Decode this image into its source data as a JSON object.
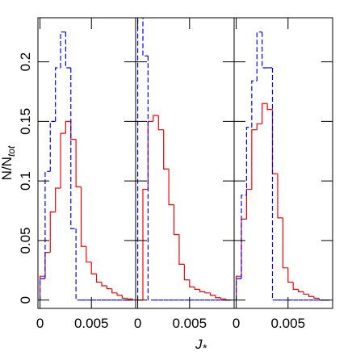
{
  "chart_data": [
    {
      "type": "histogram",
      "ylabel": "N/N",
      "ylabel_sub": "tot",
      "bins": [
        0,
        0.0005,
        0.001,
        0.0015,
        0.002,
        0.0025,
        0.003,
        0.0035,
        0.004,
        0.0045,
        0.005,
        0.0055,
        0.006,
        0.0065,
        0.007,
        0.0075,
        0.008,
        0.0085,
        0.009
      ],
      "series": [
        {
          "color": "#ff0000",
          "dashed": false,
          "values": [
            0.02,
            0.04,
            0.074,
            0.094,
            0.14,
            0.15,
            0.135,
            0.095,
            0.045,
            0.032,
            0.022,
            0.015,
            0.012,
            0.0095,
            0.006,
            0.004,
            0.0015,
            0.001
          ]
        },
        {
          "color": "#0000ff",
          "dashed": true,
          "values": [
            0.018,
            0.108,
            0.15,
            0.195,
            0.225,
            0.195,
            0.06,
            0,
            0,
            0,
            0,
            0,
            0,
            0,
            0,
            0,
            0,
            0
          ]
        }
      ],
      "xlim": [
        -0.0002,
        0.0093
      ],
      "xticks": [
        0,
        0.005
      ],
      "ylim": [
        -0.007,
        0.237
      ],
      "yticks": [
        0,
        0.05,
        0.1,
        0.15,
        0.2
      ]
    },
    {
      "type": "histogram",
      "xlabel": "J",
      "xlabel_sub": "*",
      "bins": [
        0,
        0.0005,
        0.001,
        0.0015,
        0.002,
        0.0025,
        0.003,
        0.0035,
        0.004,
        0.0045,
        0.005,
        0.0055,
        0.006,
        0.0065,
        0.007,
        0.0075,
        0.008,
        0.0085,
        0.009
      ],
      "series": [
        {
          "color": "#ff0000",
          "dashed": false,
          "values": [
            0,
            0.093,
            0.15,
            0.155,
            0.143,
            0.11,
            0.08,
            0.055,
            0.03,
            0.017,
            0.011,
            0.009,
            0.007,
            0.006,
            0.004,
            0.002,
            0.001,
            0
          ]
        },
        {
          "color": "#0000ff",
          "dashed": true,
          "values": [
            0.24,
            0.205,
            0,
            0,
            0,
            0,
            0,
            0,
            0,
            0,
            0,
            0,
            0,
            0,
            0,
            0,
            0,
            0
          ]
        }
      ],
      "xlim": [
        -0.0002,
        0.0093
      ],
      "xticks": [
        0,
        0.005
      ],
      "ylim": [
        -0.007,
        0.237
      ],
      "yticks": [
        0,
        0.05,
        0.1,
        0.15,
        0.2
      ]
    },
    {
      "type": "histogram",
      "bins": [
        0,
        0.0005,
        0.001,
        0.0015,
        0.002,
        0.0025,
        0.003,
        0.0035,
        0.004,
        0.0045,
        0.005,
        0.0055,
        0.006,
        0.0065,
        0.007,
        0.0075,
        0.008,
        0.0085,
        0.009
      ],
      "series": [
        {
          "color": "#ff0000",
          "dashed": false,
          "values": [
            0.02,
            0.068,
            0.093,
            0.143,
            0.148,
            0.165,
            0.16,
            0.106,
            0.069,
            0.027,
            0.015,
            0.009,
            0.007,
            0.005,
            0.003,
            0.0015,
            0,
            0
          ]
        },
        {
          "color": "#0000ff",
          "dashed": true,
          "values": [
            0.018,
            0.088,
            0.145,
            0.184,
            0.225,
            0.195,
            0.195,
            0,
            0,
            0,
            0,
            0,
            0,
            0,
            0,
            0,
            0,
            0
          ]
        }
      ],
      "xlim": [
        -0.0002,
        0.0093
      ],
      "xticks": [
        0,
        0.005
      ],
      "ylim": [
        -0.007,
        0.237
      ],
      "yticks": [
        0,
        0.05,
        0.1,
        0.15,
        0.2
      ]
    }
  ]
}
